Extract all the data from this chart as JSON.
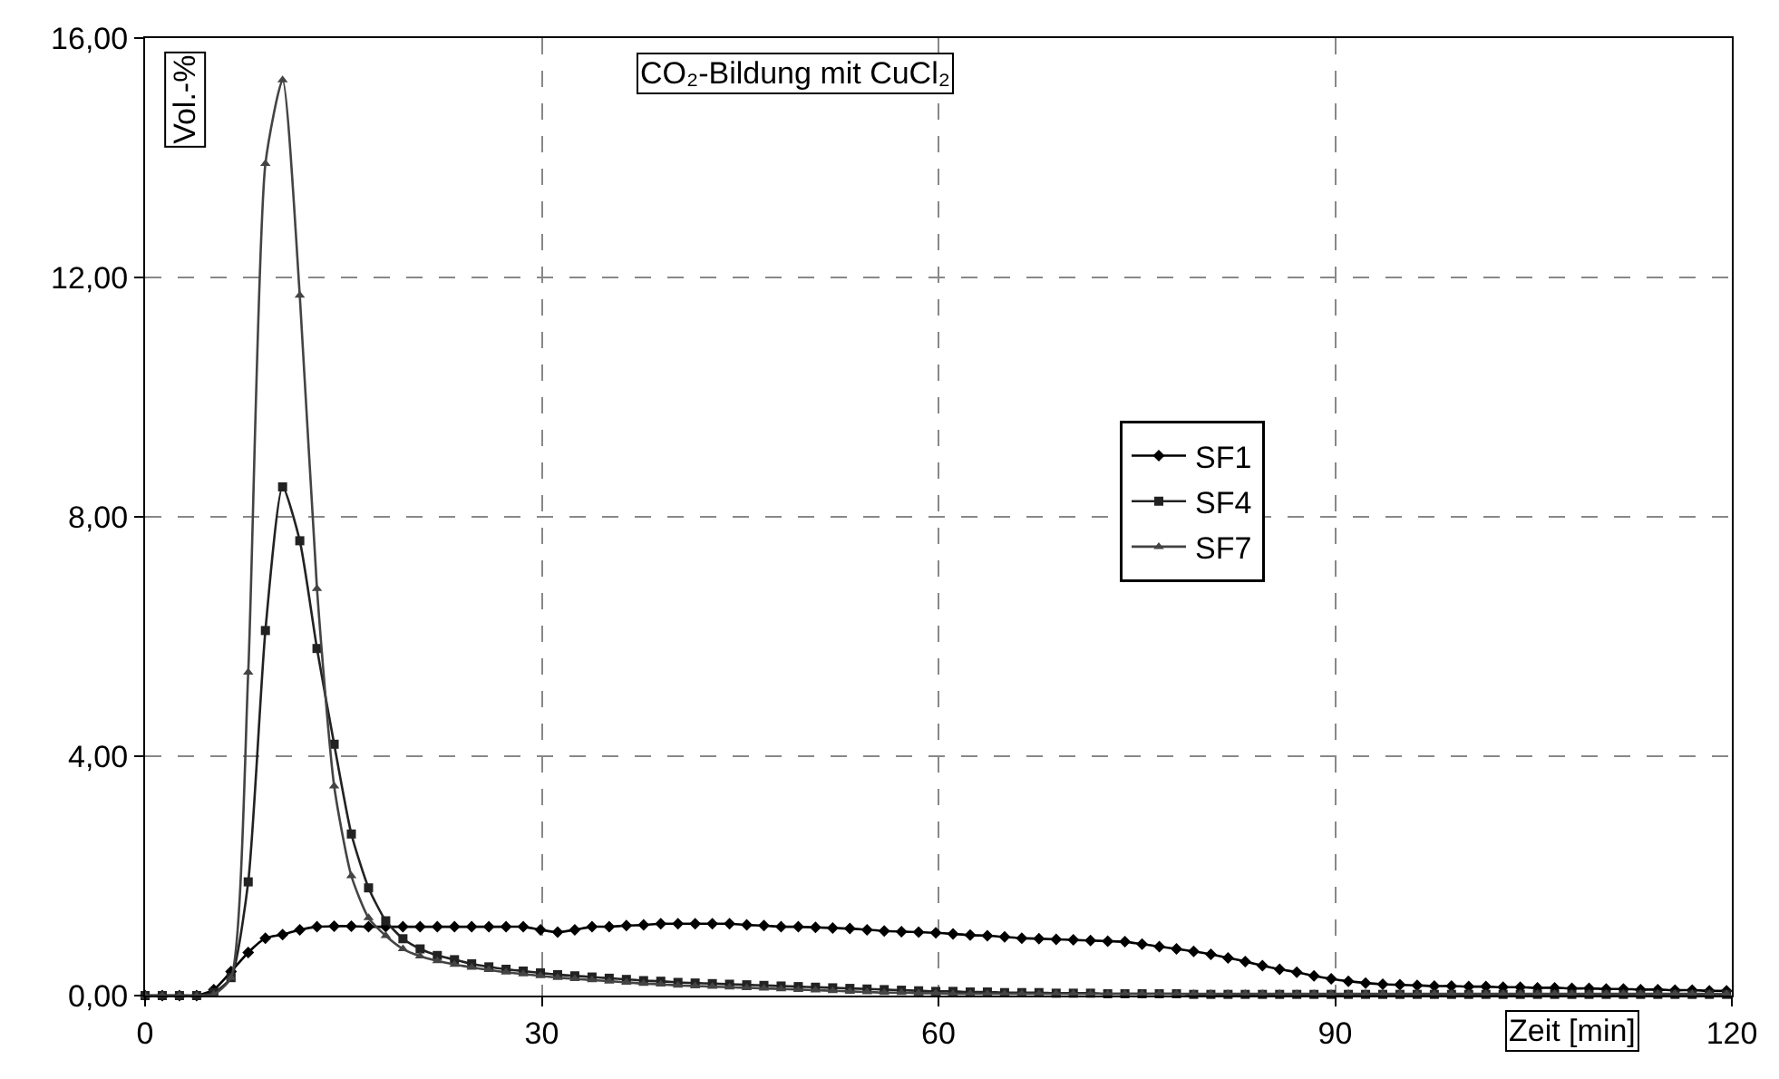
{
  "chart_data": {
    "type": "line",
    "title": "CO₂-Bildung mit CuCl₂",
    "xlabel": "Zeit [min]",
    "ylabel": "Vol.-%",
    "x": [
      0,
      1.3,
      2.6,
      3.9,
      5.2,
      6.5,
      7.8,
      9.1,
      10.4,
      11.7,
      13,
      14.3,
      15.6,
      16.9,
      18.2,
      19.5,
      20.8,
      22.1,
      23.4,
      24.7,
      26,
      27.3,
      28.6,
      29.9,
      31.2,
      32.5,
      33.8,
      35.1,
      36.4,
      37.7,
      39,
      40.3,
      41.6,
      42.9,
      44.2,
      45.5,
      46.8,
      48.1,
      49.4,
      50.7,
      52,
      53.3,
      54.6,
      55.9,
      57.2,
      58.5,
      59.8,
      61.1,
      62.4,
      63.7,
      65,
      66.3,
      67.6,
      68.9,
      70.2,
      71.5,
      72.8,
      74.1,
      75.4,
      76.7,
      78,
      79.3,
      80.6,
      81.9,
      83.2,
      84.5,
      85.8,
      87.1,
      88.4,
      89.7,
      91,
      92.3,
      93.6,
      94.9,
      96.2,
      97.5,
      98.8,
      100.1,
      101.4,
      102.7,
      104,
      105.3,
      106.6,
      107.9,
      109.2,
      110.5,
      111.8,
      113.1,
      114.4,
      115.7,
      117,
      118.3,
      119.6
    ],
    "series": [
      {
        "name": "SF1",
        "color": "#000000",
        "marker": "diamond",
        "values": [
          0,
          0,
          0,
          0,
          0.1,
          0.4,
          0.72,
          0.96,
          1.02,
          1.1,
          1.15,
          1.16,
          1.16,
          1.15,
          1.15,
          1.15,
          1.15,
          1.15,
          1.15,
          1.15,
          1.15,
          1.15,
          1.15,
          1.1,
          1.06,
          1.1,
          1.15,
          1.15,
          1.17,
          1.18,
          1.2,
          1.2,
          1.2,
          1.2,
          1.2,
          1.18,
          1.17,
          1.15,
          1.15,
          1.14,
          1.13,
          1.12,
          1.1,
          1.08,
          1.07,
          1.06,
          1.05,
          1.03,
          1.01,
          1.0,
          0.98,
          0.96,
          0.95,
          0.94,
          0.93,
          0.92,
          0.91,
          0.9,
          0.86,
          0.82,
          0.78,
          0.74,
          0.69,
          0.63,
          0.57,
          0.5,
          0.44,
          0.39,
          0.33,
          0.28,
          0.24,
          0.21,
          0.19,
          0.18,
          0.17,
          0.16,
          0.16,
          0.15,
          0.15,
          0.14,
          0.14,
          0.13,
          0.13,
          0.12,
          0.12,
          0.11,
          0.11,
          0.1,
          0.1,
          0.09,
          0.09,
          0.08,
          0.08
        ]
      },
      {
        "name": "SF4",
        "color": "#222222",
        "marker": "square",
        "values": [
          0,
          0,
          0,
          0,
          0.05,
          0.3,
          1.9,
          6.1,
          8.5,
          7.6,
          5.8,
          4.2,
          2.7,
          1.8,
          1.25,
          0.95,
          0.78,
          0.67,
          0.6,
          0.53,
          0.48,
          0.44,
          0.41,
          0.38,
          0.35,
          0.33,
          0.31,
          0.29,
          0.27,
          0.25,
          0.24,
          0.22,
          0.21,
          0.2,
          0.19,
          0.18,
          0.17,
          0.16,
          0.15,
          0.14,
          0.13,
          0.12,
          0.11,
          0.1,
          0.09,
          0.08,
          0.07,
          0.07,
          0.06,
          0.06,
          0.05,
          0.05,
          0.05,
          0.04,
          0.04,
          0.04,
          0.03,
          0.03,
          0.03,
          0.03,
          0.03,
          0.02,
          0.02,
          0.02,
          0.02,
          0.02,
          0.02,
          0.02,
          0.02,
          0.02,
          0.02,
          0.02,
          0.02,
          0.02,
          0.02,
          0.02,
          0.02,
          0.02,
          0.02,
          0.02,
          0.02,
          0.02,
          0.02,
          0.02,
          0.02,
          0.02,
          0.02,
          0.02,
          0.02,
          0.02,
          0.02,
          0.02,
          0.02
        ]
      },
      {
        "name": "SF7",
        "color": "#444444",
        "marker": "triangle",
        "values": [
          0,
          0,
          0,
          0,
          0.02,
          0.3,
          5.4,
          13.9,
          15.3,
          11.7,
          6.8,
          3.5,
          2.0,
          1.3,
          1.0,
          0.78,
          0.66,
          0.58,
          0.52,
          0.47,
          0.43,
          0.39,
          0.36,
          0.33,
          0.3,
          0.28,
          0.26,
          0.24,
          0.22,
          0.2,
          0.19,
          0.17,
          0.16,
          0.15,
          0.14,
          0.13,
          0.12,
          0.11,
          0.1,
          0.09,
          0.08,
          0.07,
          0.06,
          0.05,
          0.05,
          0.04,
          0.04,
          0.03,
          0.03,
          0.03,
          0.03,
          0.03,
          0.03,
          0.03,
          0.03,
          0.03,
          0.03,
          0.03,
          0.03,
          0.03,
          0.03,
          0.03,
          0.03,
          0.03,
          0.03,
          0.03,
          0.03,
          0.03,
          0.03,
          0.03,
          0.03,
          0.03,
          0.03,
          0.03,
          0.03,
          0.03,
          0.03,
          0.03,
          0.03,
          0.03,
          0.03,
          0.03,
          0.03,
          0.03,
          0.03,
          0.03,
          0.03,
          0.03,
          0.03,
          0.03,
          0.03,
          0.03,
          0.03
        ]
      }
    ],
    "xlim": [
      0,
      120
    ],
    "xticks": [
      0,
      30,
      60,
      90,
      120
    ],
    "ylim": [
      0,
      16
    ],
    "yticks": [
      {
        "value": 0,
        "label": "0,00"
      },
      {
        "value": 4,
        "label": "4,00"
      },
      {
        "value": 8,
        "label": "8,00"
      },
      {
        "value": 12,
        "label": "12,00"
      },
      {
        "value": 16,
        "label": "16,00"
      }
    ],
    "grid": true,
    "legend": "right",
    "line_style": "solid"
  }
}
